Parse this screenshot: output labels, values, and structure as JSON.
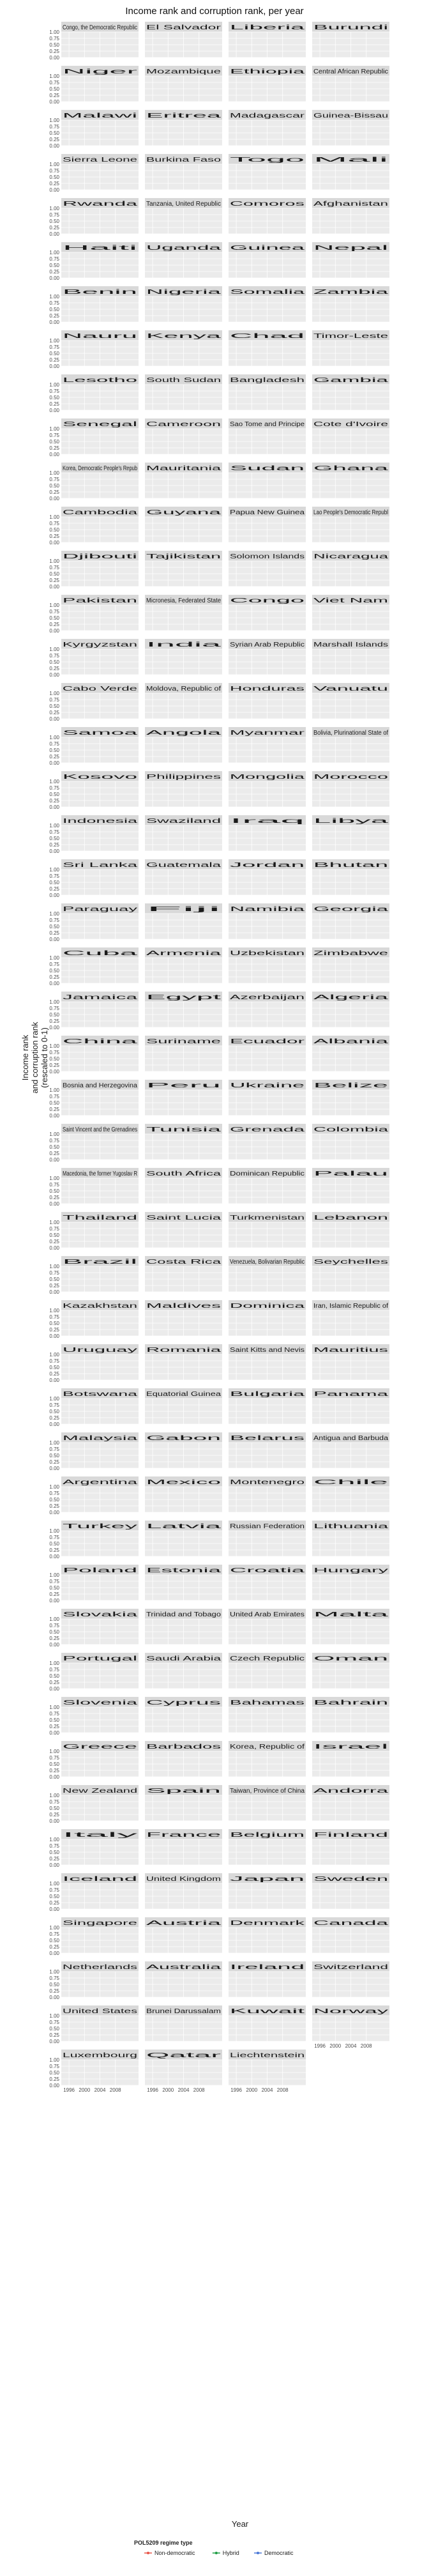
{
  "chart_data": {
    "type": "line",
    "title": "Income rank and corruption rank, per year",
    "xlabel": "Year",
    "ylabel": "Income rank\nand corruption rank\n(rescaled to 0-1)",
    "ylim": [
      0,
      1
    ],
    "xlim": [
      1994,
      2014
    ],
    "x_ticks": [
      1996,
      2000,
      2004,
      2008
    ],
    "x_tick_labels": [
      "1996",
      "2000",
      "2004",
      "2008"
    ],
    "y_ticks": [
      0,
      0.25,
      0.5,
      0.75,
      1
    ],
    "y_tick_labels": [
      "0.00",
      "0.25",
      "0.50",
      "0.75",
      "1.00"
    ],
    "facet_columns": 4,
    "facets": [
      "Congo, the Democratic Republic",
      "El Salvador",
      "Liberia",
      "Burundi",
      "Niger",
      "Mozambique",
      "Ethiopia",
      "Central African Republic",
      "Malawi",
      "Eritrea",
      "Madagascar",
      "Guinea-Bissau",
      "Sierra Leone",
      "Burkina Faso",
      "Togo",
      "Mali",
      "Rwanda",
      "Tanzania, United Republic",
      "Comoros",
      "Afghanistan",
      "Haiti",
      "Uganda",
      "Guinea",
      "Nepal",
      "Benin",
      "Nigeria",
      "Somalia",
      "Zambia",
      "Nauru",
      "Kenya",
      "Chad",
      "Timor-Leste",
      "Lesotho",
      "South Sudan",
      "Bangladesh",
      "Gambia",
      "Senegal",
      "Cameroon",
      "Sao Tome and Principe",
      "Cote d'Ivoire",
      "Korea, Democratic People's Repub",
      "Mauritania",
      "Sudan",
      "Ghana",
      "Cambodia",
      "Guyana",
      "Papua New Guinea",
      "Lao People's Democratic Republ",
      "Djibouti",
      "Tajikistan",
      "Solomon Islands",
      "Nicaragua",
      "Pakistan",
      "Micronesia, Federated State",
      "Congo",
      "Viet Nam",
      "Kyrgyzstan",
      "India",
      "Syrian Arab Republic",
      "Marshall Islands",
      "Cabo Verde",
      "Moldova, Republic of",
      "Honduras",
      "Vanuatu",
      "Samoa",
      "Angola",
      "Myanmar",
      "Bolivia, Plurinational State of",
      "Kosovo",
      "Philippines",
      "Mongolia",
      "Morocco",
      "Indonesia",
      "Swaziland",
      "Iraq",
      "Libya",
      "Sri Lanka",
      "Guatemala",
      "Jordan",
      "Bhutan",
      "Paraguay",
      "Fiji",
      "Namibia",
      "Georgia",
      "Cuba",
      "Armenia",
      "Uzbekistan",
      "Zimbabwe",
      "Jamaica",
      "Egypt",
      "Azerbaijan",
      "Algeria",
      "China",
      "Suriname",
      "Ecuador",
      "Albania",
      "Bosnia and Herzegovina",
      "Peru",
      "Ukraine",
      "Belize",
      "Saint Vincent and the Grenadines",
      "Tunisia",
      "Grenada",
      "Colombia",
      "Macedonia, the former Yugoslav R",
      "South Africa",
      "Dominican Republic",
      "Palau",
      "Thailand",
      "Saint Lucia",
      "Turkmenistan",
      "Lebanon",
      "Brazil",
      "Costa Rica",
      "Venezuela, Bolivarian Republic",
      "Seychelles",
      "Kazakhstan",
      "Maldives",
      "Dominica",
      "Iran, Islamic Republic of",
      "Uruguay",
      "Romania",
      "Saint Kitts and Nevis",
      "Mauritius",
      "Botswana",
      "Equatorial Guinea",
      "Bulgaria",
      "Panama",
      "Malaysia",
      "Gabon",
      "Belarus",
      "Antigua and Barbuda",
      "Argentina",
      "Mexico",
      "Montenegro",
      "Chile",
      "Turkey",
      "Latvia",
      "Russian Federation",
      "Lithuania",
      "Poland",
      "Estonia",
      "Croatia",
      "Hungary",
      "Slovakia",
      "Trinidad and Tobago",
      "United Arab Emirates",
      "Malta",
      "Portugal",
      "Saudi Arabia",
      "Czech Republic",
      "Oman",
      "Slovenia",
      "Cyprus",
      "Bahamas",
      "Bahrain",
      "Greece",
      "Barbados",
      "Korea, Republic of",
      "Israel",
      "New Zealand",
      "Spain",
      "Taiwan, Province of China",
      "Andorra",
      "Italy",
      "France",
      "Belgium",
      "Finland",
      "Iceland",
      "United Kingdom",
      "Japan",
      "Sweden",
      "Singapore",
      "Austria",
      "Denmark",
      "Canada",
      "Netherlands",
      "Australia",
      "Ireland",
      "Switzerland",
      "United States",
      "Brunei Darussalam",
      "Kuwait",
      "Norway",
      "Luxembourg",
      "Qatar",
      "Liechtenstein"
    ],
    "legend": {
      "title": "POL5209 regime type",
      "position": "bottom",
      "entries": [
        {
          "label": "Non-democratic",
          "color": "#e8564a"
        },
        {
          "label": "Hybrid",
          "color": "#1f9e45"
        },
        {
          "label": "Democratic",
          "color": "#4a78d8"
        }
      ]
    },
    "series_styles": {
      "income_rank": {
        "color": "#3b3b3b",
        "marker": "plus"
      },
      "corruption_rank": {
        "colored_by": "regime type",
        "band": "#bdbdbd"
      }
    }
  }
}
